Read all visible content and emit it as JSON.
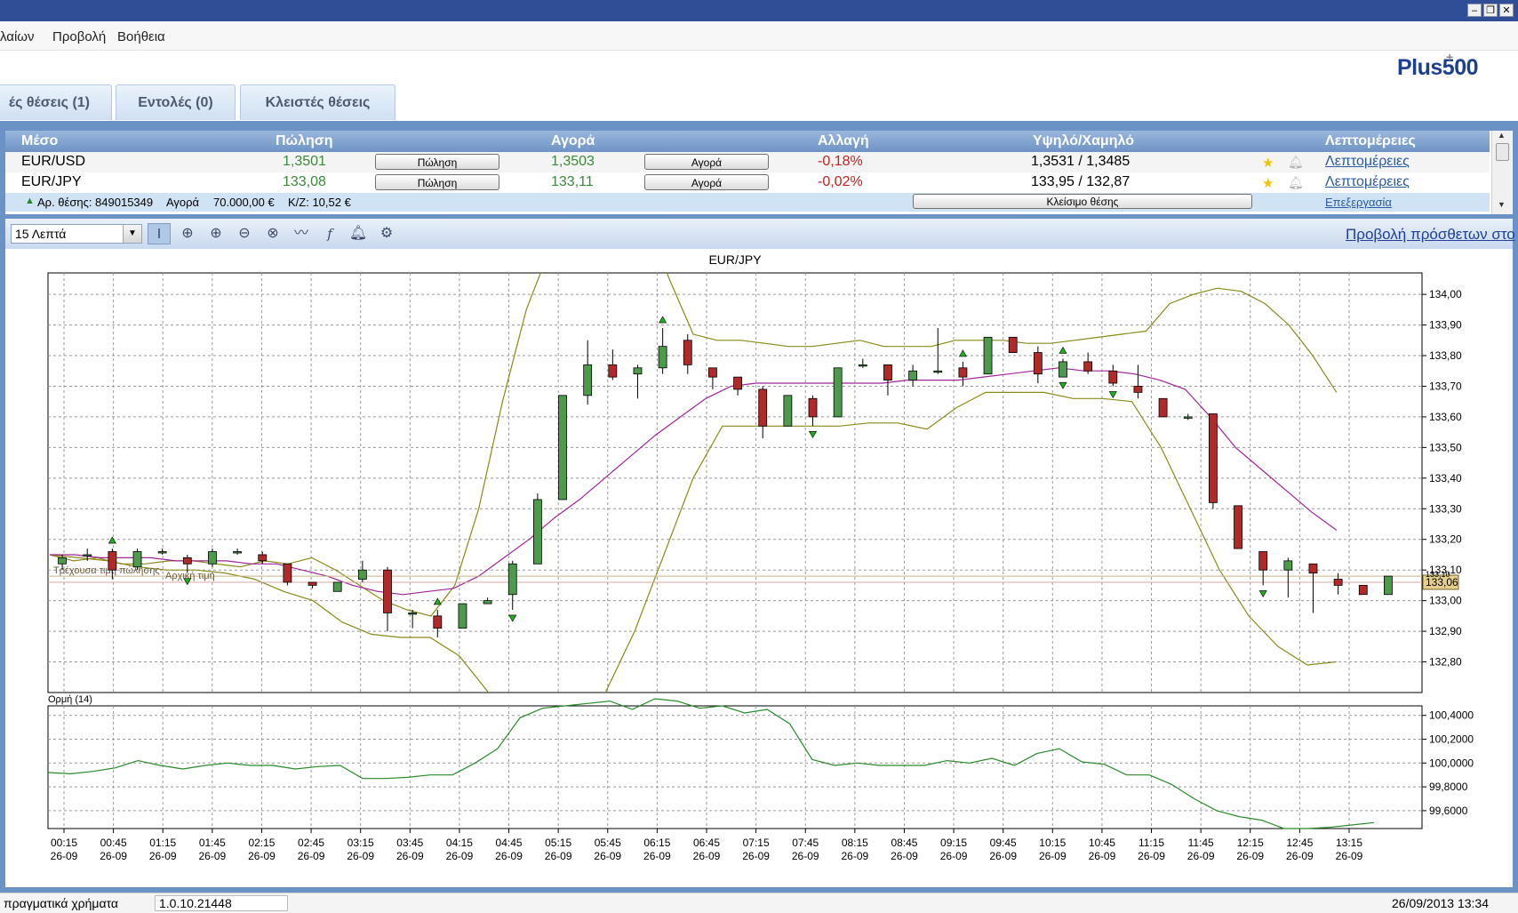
{
  "window": {
    "minimize": "–",
    "restore": "❐",
    "close": "✕"
  },
  "menu": {
    "items": [
      "λαίων",
      "Προβολή",
      "Βοήθεια"
    ]
  },
  "logo": {
    "text": "Plus500",
    "plus": "+"
  },
  "tabs": [
    {
      "label": "ές θέσεις (1)"
    },
    {
      "label": "Εντολές (0)"
    },
    {
      "label": "Κλειστές θέσεις"
    }
  ],
  "instruments": {
    "headers": {
      "instrument": "Μέσο",
      "sell": "Πώληση",
      "buy": "Αγορά",
      "change": "Αλλαγή",
      "highlow": "Υψηλό/Χαμηλό",
      "details": "Λεπτομέρειες"
    },
    "rows": [
      {
        "name": "EUR/USD",
        "sell": "1,3501",
        "sell_button": "Πώληση",
        "buy": "1,3503",
        "buy_button": "Αγορά",
        "change": "-0,18%",
        "highlow": "1,3531 / 1,3485",
        "details": "Λεπτομέρειες"
      },
      {
        "name": "EUR/JPY",
        "sell": "133,08",
        "sell_button": "Πώληση",
        "buy": "133,11",
        "buy_button": "Αγορά",
        "change": "-0,02%",
        "highlow": "133,95 / 132,87",
        "details": "Λεπτομέρειες"
      }
    ],
    "position": {
      "id": "Αρ. θέσης: 849015349",
      "type": "Αγορά",
      "amount": "70.000,00 €",
      "pl": "Κ/Ζ: 10,52 €",
      "close_button": "Κλείσιμο θέσης",
      "edit": "Επεξεργασία"
    }
  },
  "toolbar": {
    "timeframe": "15 Λεπτά",
    "icons": [
      "cursor-icon",
      "crosshair-icon",
      "zoom-in-icon",
      "zoom-out-icon",
      "zoom-reset-icon",
      "line-draw-icon",
      "function-icon",
      "bell-icon",
      "gear-icon"
    ],
    "more_link": "Προβολή πρόσθετων στο"
  },
  "chart_data": [
    {
      "type": "candlestick",
      "title": "EUR/JPY",
      "ylim": [
        132.7,
        134.07
      ],
      "yticks": [
        "134,00",
        "133,90",
        "133,80",
        "133,70",
        "133,60",
        "133,50",
        "133,40",
        "133,30",
        "133,20",
        "133,10",
        "133,00",
        "132,90",
        "132,80"
      ],
      "ytick_values": [
        134.0,
        133.9,
        133.8,
        133.7,
        133.6,
        133.5,
        133.4,
        133.3,
        133.2,
        133.1,
        133.0,
        132.9,
        132.8
      ],
      "x_labels": [
        [
          "00:15",
          "26-09"
        ],
        [
          "00:45",
          "26-09"
        ],
        [
          "01:15",
          "26-09"
        ],
        [
          "01:45",
          "26-09"
        ],
        [
          "02:15",
          "26-09"
        ],
        [
          "02:45",
          "26-09"
        ],
        [
          "03:15",
          "26-09"
        ],
        [
          "03:45",
          "26-09"
        ],
        [
          "04:15",
          "26-09"
        ],
        [
          "04:45",
          "26-09"
        ],
        [
          "05:15",
          "26-09"
        ],
        [
          "05:45",
          "26-09"
        ],
        [
          "06:15",
          "26-09"
        ],
        [
          "06:45",
          "26-09"
        ],
        [
          "07:15",
          "26-09"
        ],
        [
          "07:45",
          "26-09"
        ],
        [
          "08:15",
          "26-09"
        ],
        [
          "08:45",
          "26-09"
        ],
        [
          "09:15",
          "26-09"
        ],
        [
          "09:45",
          "26-09"
        ],
        [
          "10:15",
          "26-09"
        ],
        [
          "10:45",
          "26-09"
        ],
        [
          "11:15",
          "26-09"
        ],
        [
          "11:45",
          "26-09"
        ],
        [
          "12:15",
          "26-09"
        ],
        [
          "12:45",
          "26-09"
        ],
        [
          "13:15",
          "26-09"
        ]
      ],
      "candles": [
        {
          "o": 133.12,
          "h": 133.15,
          "l": 133.1,
          "c": 133.14
        },
        {
          "o": 133.15,
          "h": 133.17,
          "l": 133.13,
          "c": 133.15
        },
        {
          "o": 133.16,
          "h": 133.17,
          "l": 133.07,
          "c": 133.1
        },
        {
          "o": 133.11,
          "h": 133.17,
          "l": 133.1,
          "c": 133.16
        },
        {
          "o": 133.16,
          "h": 133.17,
          "l": 133.15,
          "c": 133.16
        },
        {
          "o": 133.14,
          "h": 133.15,
          "l": 133.09,
          "c": 133.12
        },
        {
          "o": 133.12,
          "h": 133.17,
          "l": 133.11,
          "c": 133.16
        },
        {
          "o": 133.16,
          "h": 133.17,
          "l": 133.15,
          "c": 133.16
        },
        {
          "o": 133.15,
          "h": 133.16,
          "l": 133.12,
          "c": 133.13
        },
        {
          "o": 133.12,
          "h": 133.12,
          "l": 133.05,
          "c": 133.06
        },
        {
          "o": 133.06,
          "h": 133.06,
          "l": 133.04,
          "c": 133.05
        },
        {
          "o": 133.03,
          "h": 133.06,
          "l": 133.03,
          "c": 133.06
        },
        {
          "o": 133.07,
          "h": 133.13,
          "l": 133.06,
          "c": 133.1
        },
        {
          "o": 133.1,
          "h": 133.11,
          "l": 132.9,
          "c": 132.96
        },
        {
          "o": 132.96,
          "h": 132.97,
          "l": 132.91,
          "c": 132.96
        },
        {
          "o": 132.95,
          "h": 132.97,
          "l": 132.88,
          "c": 132.91
        },
        {
          "o": 132.91,
          "h": 132.99,
          "l": 132.91,
          "c": 132.99
        },
        {
          "o": 132.99,
          "h": 133.01,
          "l": 132.99,
          "c": 133.0
        },
        {
          "o": 133.02,
          "h": 133.13,
          "l": 132.97,
          "c": 133.12
        },
        {
          "o": 133.12,
          "h": 133.35,
          "l": 133.12,
          "c": 133.33
        },
        {
          "o": 133.33,
          "h": 133.67,
          "l": 133.33,
          "c": 133.67
        },
        {
          "o": 133.67,
          "h": 133.85,
          "l": 133.64,
          "c": 133.77
        },
        {
          "o": 133.77,
          "h": 133.82,
          "l": 133.72,
          "c": 133.73
        },
        {
          "o": 133.74,
          "h": 133.77,
          "l": 133.66,
          "c": 133.76
        },
        {
          "o": 133.76,
          "h": 133.89,
          "l": 133.74,
          "c": 133.83
        },
        {
          "o": 133.85,
          "h": 133.87,
          "l": 133.74,
          "c": 133.77
        },
        {
          "o": 133.76,
          "h": 133.76,
          "l": 133.69,
          "c": 133.73
        },
        {
          "o": 133.73,
          "h": 133.73,
          "l": 133.67,
          "c": 133.69
        },
        {
          "o": 133.69,
          "h": 133.7,
          "l": 133.53,
          "c": 133.57
        },
        {
          "o": 133.57,
          "h": 133.67,
          "l": 133.57,
          "c": 133.67
        },
        {
          "o": 133.66,
          "h": 133.67,
          "l": 133.57,
          "c": 133.6
        },
        {
          "o": 133.6,
          "h": 133.76,
          "l": 133.6,
          "c": 133.76
        },
        {
          "o": 133.77,
          "h": 133.79,
          "l": 133.76,
          "c": 133.77
        },
        {
          "o": 133.77,
          "h": 133.77,
          "l": 133.67,
          "c": 133.72
        },
        {
          "o": 133.72,
          "h": 133.77,
          "l": 133.7,
          "c": 133.75
        },
        {
          "o": 133.75,
          "h": 133.89,
          "l": 133.74,
          "c": 133.75
        },
        {
          "o": 133.76,
          "h": 133.78,
          "l": 133.7,
          "c": 133.73
        },
        {
          "o": 133.74,
          "h": 133.86,
          "l": 133.74,
          "c": 133.86
        },
        {
          "o": 133.86,
          "h": 133.86,
          "l": 133.81,
          "c": 133.81
        },
        {
          "o": 133.81,
          "h": 133.83,
          "l": 133.71,
          "c": 133.74
        },
        {
          "o": 133.73,
          "h": 133.79,
          "l": 133.73,
          "c": 133.78
        },
        {
          "o": 133.78,
          "h": 133.81,
          "l": 133.74,
          "c": 133.75
        },
        {
          "o": 133.75,
          "h": 133.77,
          "l": 133.7,
          "c": 133.71
        },
        {
          "o": 133.7,
          "h": 133.77,
          "l": 133.66,
          "c": 133.68
        },
        {
          "o": 133.66,
          "h": 133.66,
          "l": 133.6,
          "c": 133.6
        },
        {
          "o": 133.6,
          "h": 133.61,
          "l": 133.59,
          "c": 133.6
        },
        {
          "o": 133.61,
          "h": 133.61,
          "l": 133.3,
          "c": 133.32
        },
        {
          "o": 133.31,
          "h": 133.31,
          "l": 133.17,
          "c": 133.17
        },
        {
          "o": 133.16,
          "h": 133.16,
          "l": 133.05,
          "c": 133.1
        },
        {
          "o": 133.1,
          "h": 133.14,
          "l": 133.01,
          "c": 133.13
        },
        {
          "o": 133.12,
          "h": 133.12,
          "l": 132.96,
          "c": 133.09
        },
        {
          "o": 133.07,
          "h": 133.09,
          "l": 133.02,
          "c": 133.05
        },
        {
          "o": 133.05,
          "h": 133.05,
          "l": 133.02,
          "c": 133.02
        },
        {
          "o": 133.02,
          "h": 133.08,
          "l": 133.02,
          "c": 133.08
        }
      ],
      "arrows_up": [
        2,
        15,
        24,
        36,
        40
      ],
      "arrows_down": [
        5,
        18,
        30,
        40,
        42,
        48,
        54,
        56,
        57,
        63
      ],
      "upper_band": [
        133.15,
        133.13,
        133.14,
        133.12,
        133.12,
        133.13,
        133.13,
        133.12,
        133.11,
        133.13,
        133.12,
        133.14,
        133.1,
        133.05,
        133.0,
        132.97,
        132.95,
        133.05,
        133.3,
        133.65,
        133.95,
        134.15,
        134.4,
        134.55,
        134.4,
        134.25,
        134.05,
        133.87,
        133.85,
        133.85,
        133.84,
        133.83,
        133.83,
        133.84,
        133.85,
        133.83,
        133.83,
        133.83,
        133.85,
        133.85,
        133.85,
        133.84,
        133.84,
        133.85,
        133.86,
        133.87,
        133.88,
        133.97,
        134.0,
        134.02,
        134.01,
        133.97,
        133.9,
        133.8,
        133.68
      ],
      "middle_band": [
        133.15,
        133.15,
        133.14,
        133.14,
        133.14,
        133.13,
        133.13,
        133.13,
        133.12,
        133.12,
        133.1,
        133.08,
        133.05,
        133.03,
        133.02,
        133.03,
        133.04,
        133.08,
        133.14,
        133.2,
        133.27,
        133.33,
        133.4,
        133.47,
        133.54,
        133.6,
        133.66,
        133.7,
        133.71,
        133.71,
        133.71,
        133.71,
        133.71,
        133.71,
        133.72,
        133.72,
        133.72,
        133.73,
        133.74,
        133.75,
        133.76,
        133.75,
        133.75,
        133.74,
        133.72,
        133.69,
        133.6,
        133.5,
        133.43,
        133.36,
        133.29,
        133.23
      ],
      "lower_band": [
        133.15,
        133.14,
        133.13,
        133.11,
        133.1,
        133.1,
        133.09,
        133.07,
        133.03,
        133.0,
        132.93,
        132.89,
        132.88,
        132.88,
        132.82,
        132.7,
        132.55,
        132.4,
        132.45,
        132.7,
        132.9,
        133.15,
        133.4,
        133.57,
        133.57,
        133.57,
        133.57,
        133.57,
        133.58,
        133.58,
        133.56,
        133.63,
        133.68,
        133.68,
        133.68,
        133.66,
        133.66,
        133.65,
        133.5,
        133.3,
        133.1,
        132.95,
        132.85,
        132.79,
        132.8
      ],
      "labels": {
        "current_sell": "Τρέχουσα τιμή πώλησης",
        "initial": "Αρχική τιμή",
        "price_tag": "133,06",
        "price_tag2": "133,10"
      },
      "current_price": 133.06,
      "initial_price": 133.08
    },
    {
      "type": "line",
      "title": "Ορμή (14)",
      "ylim": [
        99.45,
        100.48
      ],
      "yticks": [
        "100,4000",
        "100,2000",
        "100,0000",
        "99,8000",
        "99,6000"
      ],
      "ytick_values": [
        100.4,
        100.2,
        100.0,
        99.8,
        99.6
      ],
      "series": [
        {
          "values": [
            99.92,
            99.91,
            99.93,
            99.96,
            100.02,
            99.98,
            99.95,
            99.98,
            100.0,
            99.98,
            99.98,
            99.95,
            99.97,
            99.98,
            99.87,
            99.87,
            99.88,
            99.9,
            99.9,
            100.0,
            100.12,
            100.38,
            100.46,
            100.48,
            100.5,
            100.52,
            100.45,
            100.54,
            100.52,
            100.46,
            100.48,
            100.42,
            100.45,
            100.33,
            100.03,
            99.98,
            100.0,
            99.98,
            99.98,
            99.98,
            100.02,
            100.0,
            100.04,
            99.98,
            100.08,
            100.12,
            100.01,
            99.99,
            99.9,
            99.9,
            99.82,
            99.7,
            99.6,
            99.55,
            99.52,
            99.45,
            99.45,
            99.46,
            99.48,
            99.5
          ]
        }
      ]
    }
  ],
  "status": {
    "mode": "πραγματικά χρήματα",
    "version": "1.0.10.21448",
    "datetime": "26/09/2013 13:34"
  }
}
